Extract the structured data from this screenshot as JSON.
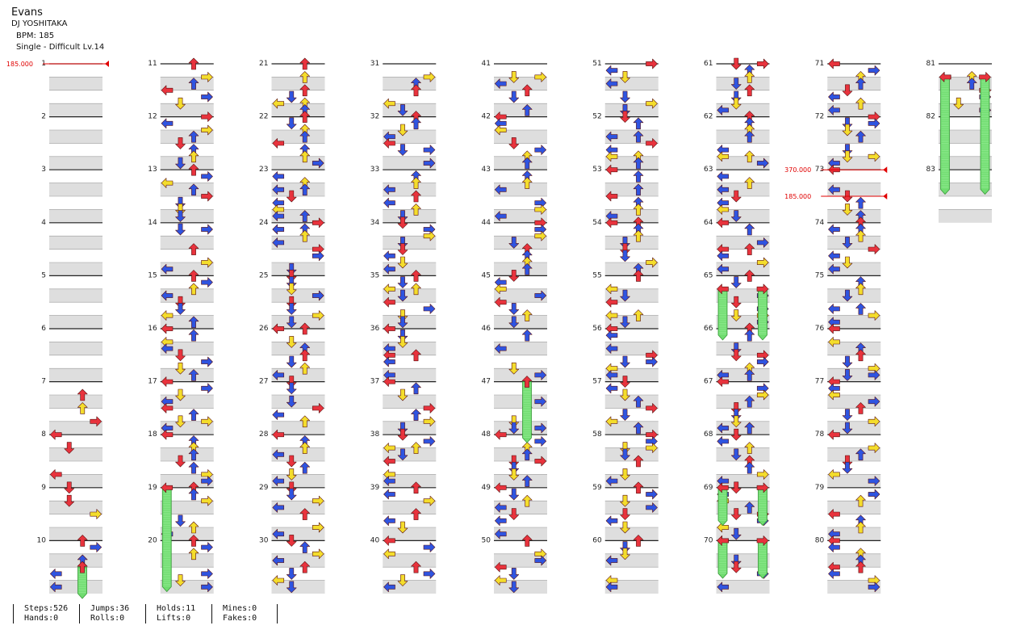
{
  "song": {
    "title": "Evans",
    "artist": "DJ YOSHITAKA",
    "bpm_label": "BPM: 185",
    "difficulty_label": "Single - Difficult Lv.14"
  },
  "colors": {
    "red": "#e8333d",
    "blue": "#2f54e0",
    "yellow": "#f4dd2c",
    "hold": "#6fdc6f",
    "band": "#dedede",
    "bpm_marker": "#e00000"
  },
  "measures": {
    "count": 83,
    "per_column": 10
  },
  "bpm_changes": [
    {
      "measure": 1,
      "label": "185.000"
    },
    {
      "measure": 73,
      "label": "370.000"
    },
    {
      "measure": 73.5,
      "label": "185.000"
    }
  ],
  "holds": [
    {
      "lane": 2,
      "from": 10.5,
      "to": 11.0
    },
    {
      "lane": 0,
      "from": 19.0,
      "to": 20.87
    },
    {
      "lane": 2,
      "from": 47.0,
      "to": 48.06
    },
    {
      "lane": 0,
      "from": 65.25,
      "to": 66.12
    },
    {
      "lane": 3,
      "from": 65.25,
      "to": 66.12
    },
    {
      "lane": 0,
      "from": 69.0,
      "to": 69.62
    },
    {
      "lane": 3,
      "from": 69.0,
      "to": 69.62
    },
    {
      "lane": 0,
      "from": 70.0,
      "to": 70.62
    },
    {
      "lane": 3,
      "from": 70.0,
      "to": 70.62
    },
    {
      "lane": 0,
      "from": 81.25,
      "to": 83.37
    },
    {
      "lane": 3,
      "from": 81.25,
      "to": 83.37
    }
  ],
  "stats": {
    "steps": "Steps:526",
    "jumps": "Jumps:36",
    "holds": "Holds:11",
    "mines": "Mines:0",
    "hands": "Hands:0",
    "rolls": "Rolls:0",
    "lifts": "Lifts:0",
    "fakes": "Fakes:0"
  }
}
